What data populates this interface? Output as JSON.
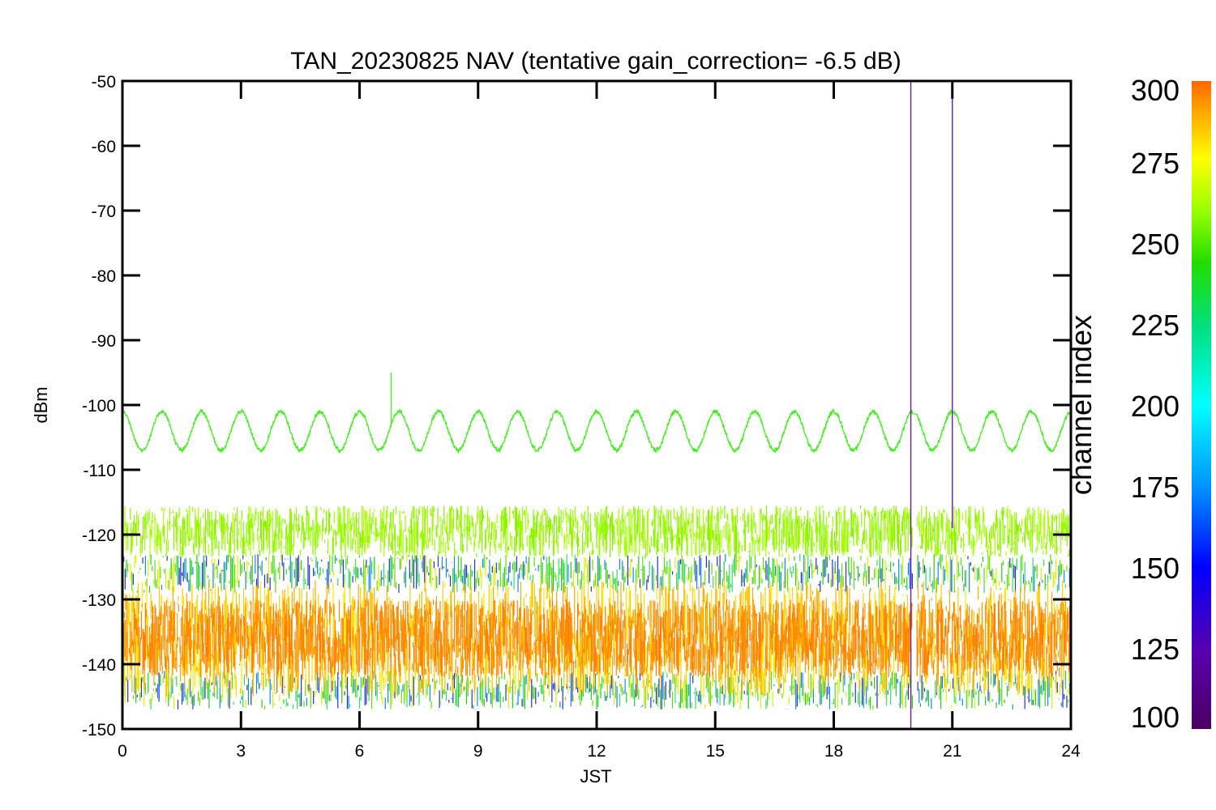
{
  "chart_data": {
    "type": "line",
    "title": "TAN_20230825 NAV (tentative gain_correction= -6.5 dB)",
    "xlabel": "JST",
    "ylabel": "dBm",
    "xlim": [
      0,
      24
    ],
    "ylim": [
      -150,
      -50
    ],
    "x_ticks": [
      "0",
      "3",
      "6",
      "9",
      "12",
      "15",
      "18",
      "21",
      "24"
    ],
    "y_ticks": [
      "-50",
      "-60",
      "-70",
      "-80",
      "-90",
      "-100",
      "-110",
      "-120",
      "-130",
      "-140",
      "-150"
    ],
    "colorbar": {
      "label": "channel index",
      "range": [
        100,
        300
      ],
      "ticks": [
        "300",
        "275",
        "250",
        "225",
        "200",
        "175",
        "150",
        "125",
        "100"
      ]
    },
    "series": [
      {
        "channel_index": 240,
        "color": "#44ee22",
        "description_values": "sinusoidal signal oscillating between about -101 and -107 dBm, roughly 24 cycles per day, spike to about -95 dBm near 6.8 JST",
        "center": -104,
        "amplitude": 3,
        "cycles_per_day": 24
      },
      {
        "channel_index": 255,
        "color": "#99ff00",
        "center": -119.5,
        "band_halfwidth": 4
      },
      {
        "channel_index": 285,
        "color": "#ff8800",
        "center": -136,
        "band_halfwidth": 6
      }
    ],
    "gap": {
      "start": 20.0,
      "end": 20.1
    },
    "vertical_spikes": [
      19.95,
      21.0
    ]
  }
}
